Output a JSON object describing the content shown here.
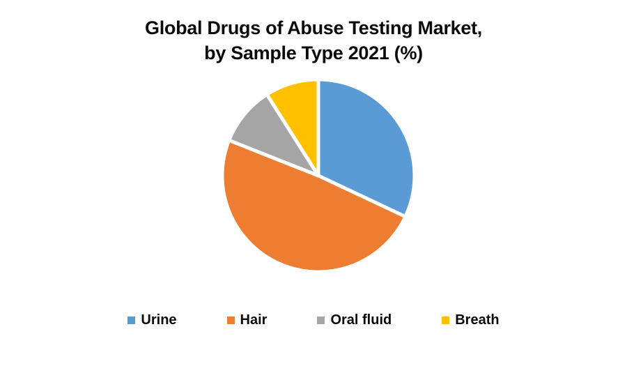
{
  "title": {
    "line1": "Global Drugs of Abuse Testing Market,",
    "line2": "by Sample Type 2021 (%)"
  },
  "chart_data": {
    "type": "pie",
    "title": "Global Drugs of Abuse Testing Market, by Sample Type 2021 (%)",
    "labels": [
      "Urine",
      "Hair",
      "Oral fluid",
      "Breath"
    ],
    "values": [
      32,
      49,
      10,
      9
    ],
    "unit": "%",
    "colors": [
      "#5B9BD5",
      "#ED7D31",
      "#A5A5A5",
      "#FFC000"
    ],
    "start_angle_deg": 0,
    "direction": "clockwise",
    "separator_color": "#FFFFFF",
    "legend_position": "bottom",
    "data_labels_shown": false
  },
  "legend": {
    "items": [
      {
        "label": "Urine"
      },
      {
        "label": "Hair"
      },
      {
        "label": "Oral fluid"
      },
      {
        "label": "Breath"
      }
    ]
  }
}
